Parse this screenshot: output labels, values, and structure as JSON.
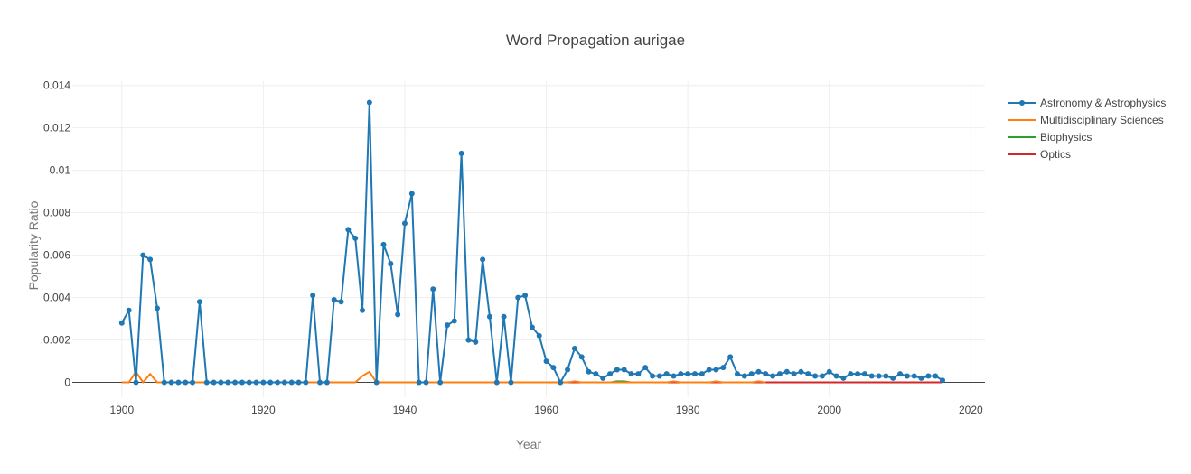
{
  "chart_data": {
    "type": "line",
    "title": "Word Propagation aurigae",
    "xlabel": "Year",
    "ylabel": "Popularity Ratio",
    "xlim": [
      1893,
      2022
    ],
    "ylim": [
      -0.0007,
      0.0142
    ],
    "xticks": [
      1900,
      1920,
      1940,
      1960,
      1980,
      2000,
      2020
    ],
    "xtick_labels": [
      "1900",
      "1920",
      "1940",
      "1960",
      "1980",
      "2000",
      "2020"
    ],
    "yticks": [
      0,
      0.002,
      0.004,
      0.006,
      0.008,
      0.01,
      0.012,
      0.014
    ],
    "ytick_labels": [
      "0",
      "0.002",
      "0.004",
      "0.006",
      "0.008",
      "0.01",
      "0.012",
      "0.014"
    ],
    "grid": true,
    "legend_position": "top-right",
    "series": [
      {
        "name": "Astronomy & Astrophysics",
        "color": "#1f77b4",
        "markers": true,
        "x": [
          1900,
          1901,
          1902,
          1903,
          1904,
          1905,
          1906,
          1907,
          1908,
          1909,
          1910,
          1911,
          1912,
          1913,
          1914,
          1915,
          1916,
          1917,
          1918,
          1919,
          1920,
          1921,
          1922,
          1923,
          1924,
          1925,
          1926,
          1927,
          1928,
          1929,
          1930,
          1931,
          1932,
          1933,
          1934,
          1935,
          1936,
          1937,
          1938,
          1939,
          1940,
          1941,
          1942,
          1943,
          1944,
          1945,
          1946,
          1947,
          1948,
          1949,
          1950,
          1951,
          1952,
          1953,
          1954,
          1955,
          1956,
          1957,
          1958,
          1959,
          1960,
          1961,
          1962,
          1963,
          1964,
          1965,
          1966,
          1967,
          1968,
          1969,
          1970,
          1971,
          1972,
          1973,
          1974,
          1975,
          1976,
          1977,
          1978,
          1979,
          1980,
          1981,
          1982,
          1983,
          1984,
          1985,
          1986,
          1987,
          1988,
          1989,
          1990,
          1991,
          1992,
          1993,
          1994,
          1995,
          1996,
          1997,
          1998,
          1999,
          2000,
          2001,
          2002,
          2003,
          2004,
          2005,
          2006,
          2007,
          2008,
          2009,
          2010,
          2011,
          2012,
          2013,
          2014,
          2015,
          2016
        ],
        "y": [
          0.0028,
          0.0034,
          0.0,
          0.006,
          0.0058,
          0.0035,
          0.0,
          0.0,
          0.0,
          0.0,
          0.0,
          0.0038,
          0.0,
          0.0,
          0.0,
          0.0,
          0.0,
          0.0,
          0.0,
          0.0,
          0.0,
          0.0,
          0.0,
          0.0,
          0.0,
          0.0,
          0.0,
          0.0041,
          0.0,
          0.0,
          0.0039,
          0.0038,
          0.0072,
          0.0068,
          0.0034,
          0.0132,
          0.0,
          0.0065,
          0.0056,
          0.0032,
          0.0075,
          0.0089,
          0.0,
          0.0,
          0.0044,
          0.0,
          0.0027,
          0.0029,
          0.0108,
          0.002,
          0.0019,
          0.0058,
          0.0031,
          0.0,
          0.0031,
          0.0,
          0.004,
          0.0041,
          0.0026,
          0.0022,
          0.001,
          0.0007,
          0.0,
          0.0006,
          0.0016,
          0.0012,
          0.0005,
          0.0004,
          0.0002,
          0.0004,
          0.0006,
          0.0006,
          0.0004,
          0.0004,
          0.0007,
          0.0003,
          0.0003,
          0.0004,
          0.0003,
          0.0004,
          0.0004,
          0.0004,
          0.0004,
          0.0006,
          0.0006,
          0.0007,
          0.0012,
          0.0004,
          0.0003,
          0.0004,
          0.0005,
          0.0004,
          0.0003,
          0.0004,
          0.0005,
          0.0004,
          0.0005,
          0.0004,
          0.0003,
          0.0003,
          0.0005,
          0.0003,
          0.0002,
          0.0004,
          0.0004,
          0.0004,
          0.0003,
          0.0003,
          0.0003,
          0.0002,
          0.0004,
          0.0003,
          0.0003,
          0.0002,
          0.0003,
          0.0003,
          0.0001
        ]
      },
      {
        "name": "Multidisciplinary Sciences",
        "color": "#ff7f0e",
        "markers": false,
        "x": [
          1900,
          1901,
          1902,
          1903,
          1904,
          1905,
          1906,
          1907,
          1908,
          1909,
          1910,
          1911,
          1912,
          1913,
          1914,
          1915,
          1916,
          1917,
          1918,
          1919,
          1920,
          1921,
          1922,
          1923,
          1924,
          1925,
          1926,
          1927,
          1928,
          1929,
          1930,
          1931,
          1932,
          1933,
          1934,
          1935,
          1936,
          1937,
          1938,
          1939,
          1940,
          1941,
          1942,
          1943,
          1944,
          1945,
          1946,
          1963,
          1964,
          1965,
          1977,
          1978,
          1979,
          1983,
          1984,
          1985,
          1989,
          1990,
          1991
        ],
        "y": [
          0,
          0,
          0.0005,
          0,
          0.0004,
          0,
          0,
          0,
          0,
          0,
          0,
          0,
          0,
          0,
          0,
          0,
          0,
          0,
          0,
          0,
          0,
          0,
          0,
          0,
          0,
          0,
          0,
          0,
          0,
          0,
          0,
          0,
          0,
          0,
          0.0003,
          0.0005,
          0,
          0,
          0,
          0,
          0,
          0,
          0,
          0,
          0,
          0,
          0,
          0,
          5e-05,
          0,
          0,
          5e-05,
          0,
          0,
          5e-05,
          0,
          0,
          5e-05,
          0
        ]
      },
      {
        "name": "Biophysics",
        "color": "#2ca02c",
        "markers": false,
        "x": [
          1969,
          1970,
          1971,
          1972
        ],
        "y": [
          0,
          5e-05,
          5e-05,
          0
        ]
      },
      {
        "name": "Optics",
        "color": "#d62728",
        "markers": false,
        "x": [
          1946,
          2016
        ],
        "y": [
          0,
          0
        ]
      }
    ]
  }
}
